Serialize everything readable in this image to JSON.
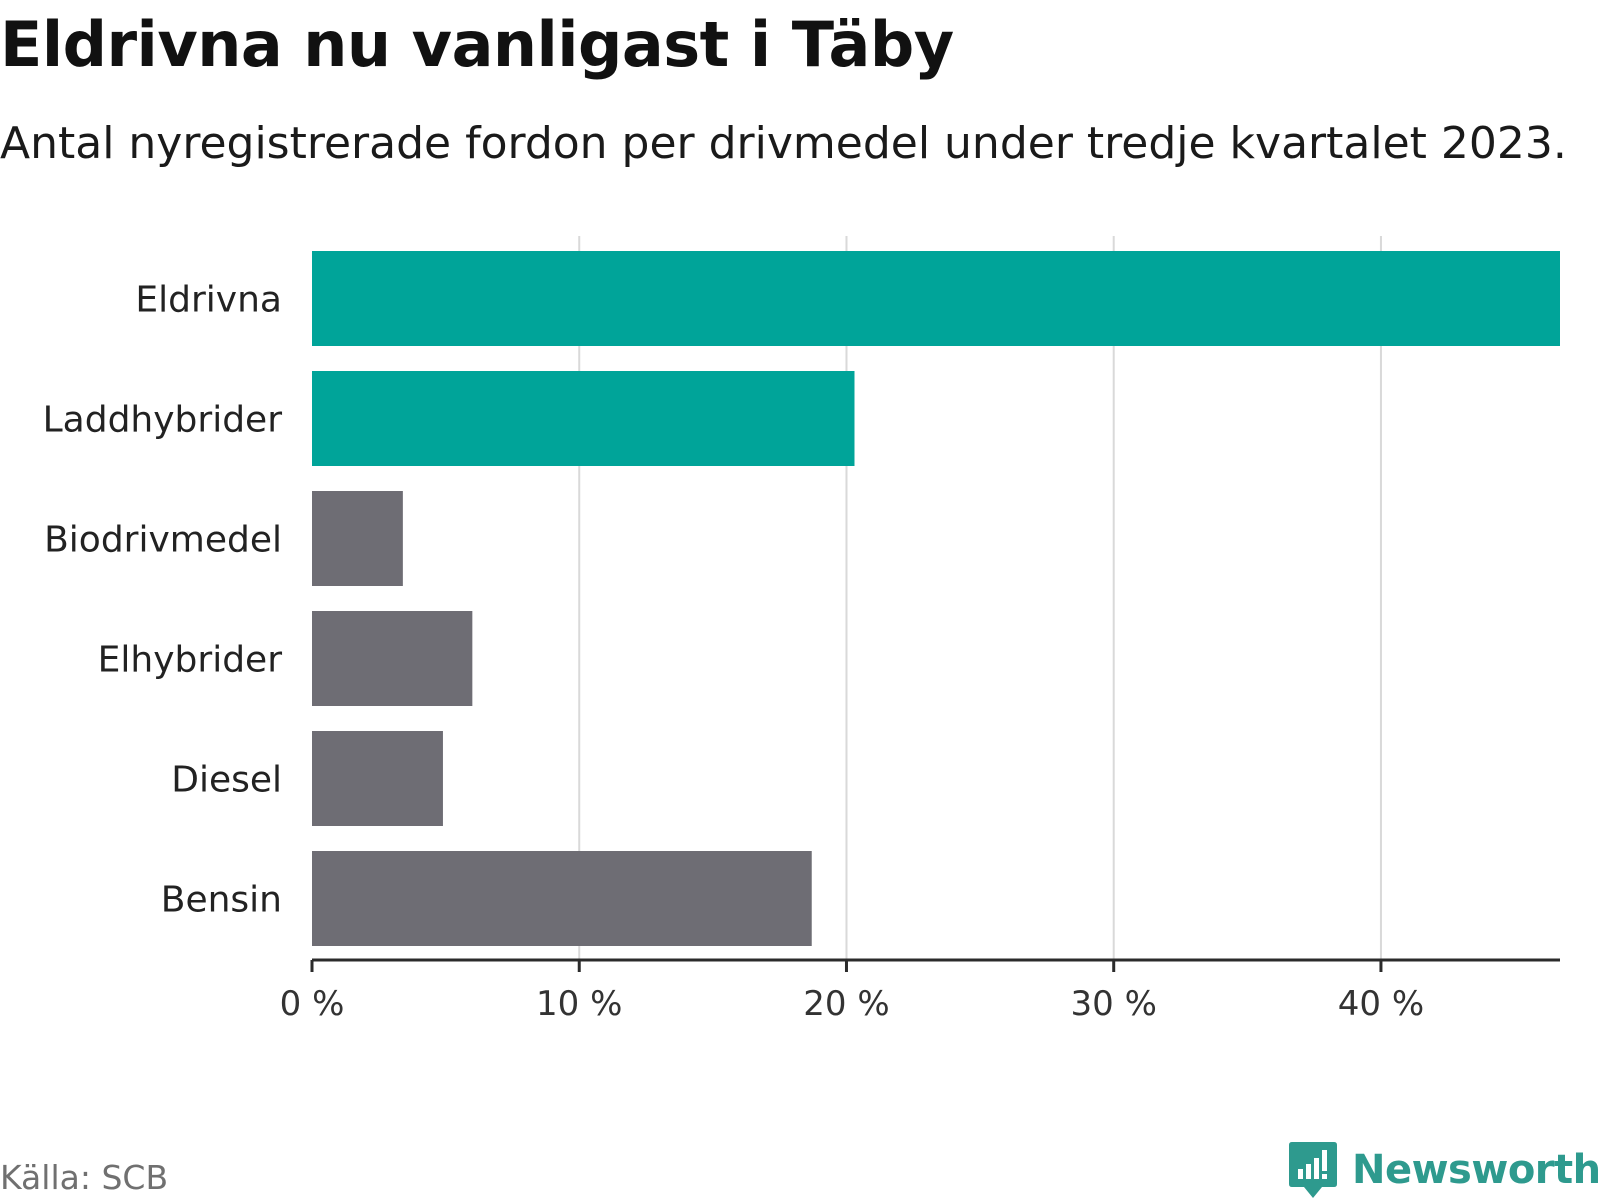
{
  "title": "Eldrivna nu vanligast i Täby",
  "subtitle": "Antal nyregistrerade fordon per drivmedel under tredje kvartalet 2023.",
  "source": "Källa: SCB",
  "brand": "Newsworthy",
  "colors": {
    "highlight": "#00a499",
    "default": "#6e6d74",
    "grid": "#d9d9d9",
    "axis": "#2b2b2b",
    "brand": "#2e9a8e"
  },
  "chart_data": {
    "type": "bar",
    "orientation": "horizontal",
    "title": "Eldrivna nu vanligast i Täby",
    "subtitle": "Antal nyregistrerade fordon per drivmedel under tredje kvartalet 2023.",
    "xlabel": "",
    "ylabel": "",
    "grid": true,
    "xlim": [
      0,
      46.7
    ],
    "categories": [
      "Eldrivna",
      "Laddhybrider",
      "Biodrivmedel",
      "Elhybrider",
      "Diesel",
      "Bensin"
    ],
    "values": [
      46.7,
      20.3,
      3.4,
      6.0,
      4.9,
      18.7
    ],
    "highlight": [
      true,
      true,
      false,
      false,
      false,
      false
    ],
    "ticks": [
      0,
      10,
      20,
      30,
      40
    ],
    "tick_labels": [
      "0 %",
      "10 %",
      "20 %",
      "30 %",
      "40 %"
    ]
  }
}
